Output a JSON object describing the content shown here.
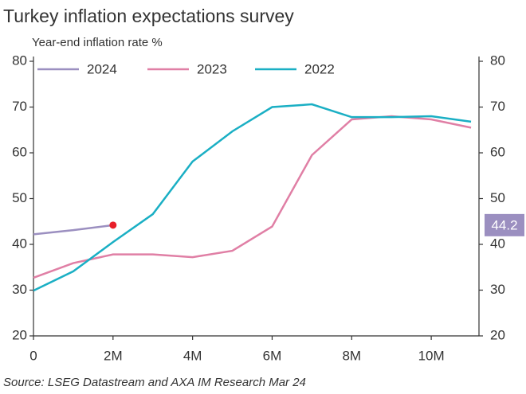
{
  "chart_data": {
    "type": "line",
    "title": "Turkey inflation expectations survey",
    "subtitle": "Year-end inflation rate %",
    "source": "Source: LSEG Datastream and AXA IM Research Mar 24",
    "x": [
      0,
      1,
      2,
      3,
      4,
      5,
      6,
      7,
      8,
      9,
      10,
      11
    ],
    "xlim": [
      0,
      11.2
    ],
    "xticks": [
      0,
      {
        "value": 2,
        "label": "2M"
      },
      {
        "value": 4,
        "label": "4M"
      },
      {
        "value": 6,
        "label": "6M"
      },
      {
        "value": 8,
        "label": "8M"
      },
      {
        "value": 10,
        "label": "10M"
      }
    ],
    "ylim": [
      20,
      80
    ],
    "yticks": [
      20,
      30,
      40,
      50,
      60,
      70,
      80
    ],
    "y2lim": [
      20,
      80
    ],
    "y2ticks": [
      20,
      30,
      40,
      50,
      60,
      70,
      80
    ],
    "grid": false,
    "legend": "top-left",
    "highlight_color": "#e8202a",
    "series": [
      {
        "name": "2024",
        "color": "#9b8fc0",
        "values": [
          42.2,
          43.1,
          44.2,
          null,
          null,
          null,
          null,
          null,
          null,
          null,
          null,
          null
        ]
      },
      {
        "name": "2023",
        "color": "#e07fa5",
        "values": [
          32.7,
          35.9,
          37.8,
          37.8,
          37.2,
          38.6,
          43.9,
          59.5,
          67.3,
          68.0,
          67.3,
          65.5
        ]
      },
      {
        "name": "2022",
        "color": "#1aafc4",
        "values": [
          29.9,
          34.1,
          40.5,
          46.6,
          58.1,
          64.7,
          70.0,
          70.6,
          67.8,
          67.8,
          68.0,
          66.8
        ]
      }
    ]
  }
}
